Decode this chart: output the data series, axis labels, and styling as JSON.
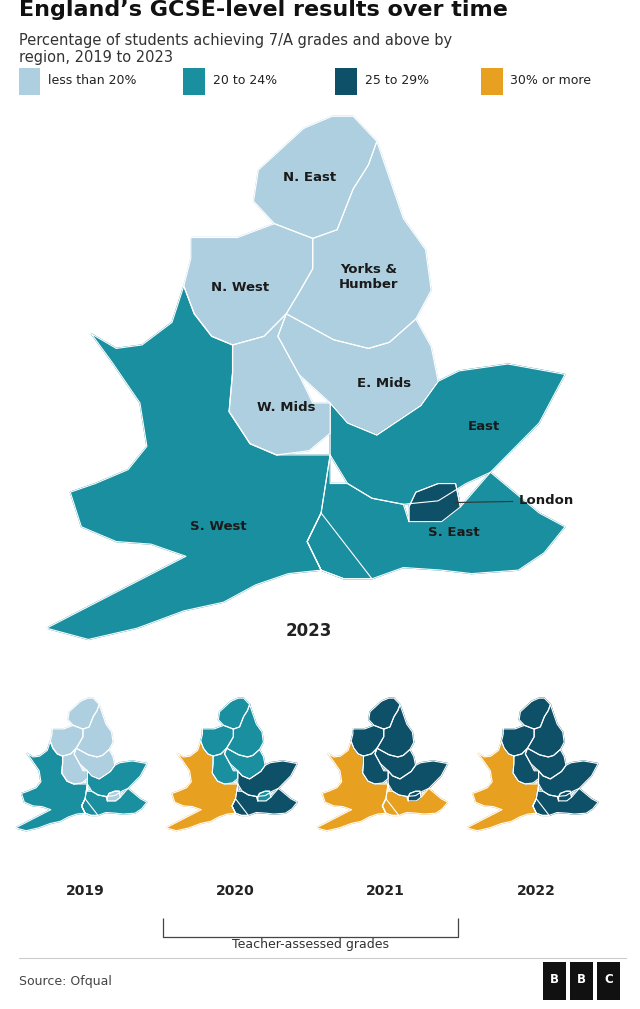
{
  "title": "England’s GCSE-level results over time",
  "subtitle": "Percentage of students achieving 7/A grades and above by\nregion, 2019 to 2023",
  "colors": {
    "less_than_20": "#aecfdf",
    "20_to_24": "#1a8fa0",
    "25_to_29": "#0d5068",
    "30_or_more": "#e8a020",
    "london_2023": "#1e4f62",
    "background": "#ffffff",
    "border": "#ffffff"
  },
  "legend": [
    {
      "label": "less than 20%",
      "color": "#aecfdf"
    },
    {
      "label": "20 to 24%",
      "color": "#1a8fa0"
    },
    {
      "label": "25 to 29%",
      "color": "#0d5068"
    },
    {
      "label": "30% or more",
      "color": "#e8a020"
    }
  ],
  "source": "Source: Ofqual",
  "teacher_assessed_label": "Teacher-assessed grades",
  "regions_2023": {
    "N. East": "less_than_20",
    "N. West": "less_than_20",
    "Yorks &\nHumber": "less_than_20",
    "E. Mids": "less_than_20",
    "W. Mids": "less_than_20",
    "East": "20_to_24",
    "London": "25_to_29",
    "S. East": "20_to_24",
    "S. West": "20_to_24"
  },
  "regions_2019": {
    "N. East": "less_than_20",
    "N. West": "less_than_20",
    "Yorks &\nHumber": "less_than_20",
    "E. Mids": "less_than_20",
    "W. Mids": "less_than_20",
    "East": "20_to_24",
    "London": "less_than_20",
    "S. East": "20_to_24",
    "S. West": "20_to_24"
  },
  "regions_2020": {
    "N. East": "20_to_24",
    "N. West": "20_to_24",
    "Yorks &\nHumber": "20_to_24",
    "E. Mids": "20_to_24",
    "W. Mids": "20_to_24",
    "East": "25_to_29",
    "London": "20_to_24",
    "S. East": "25_to_29",
    "S. West": "30_or_more"
  },
  "regions_2021": {
    "N. East": "25_to_29",
    "N. West": "25_to_29",
    "Yorks &\nHumber": "25_to_29",
    "E. Mids": "25_to_29",
    "W. Mids": "25_to_29",
    "East": "25_to_29",
    "London": "25_to_29",
    "S. East": "30_or_more",
    "S. West": "30_or_more"
  },
  "regions_2022": {
    "N. East": "25_to_29",
    "N. West": "25_to_29",
    "Yorks &\nHumber": "25_to_29",
    "E. Mids": "25_to_29",
    "W. Mids": "25_to_29",
    "East": "25_to_29",
    "London": "25_to_29",
    "S. East": "25_to_29",
    "S. West": "30_or_more"
  }
}
